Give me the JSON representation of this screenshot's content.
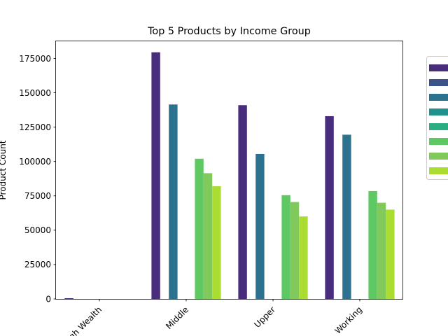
{
  "chart_data": {
    "type": "bar",
    "title": "Top 5 Products by Income Group",
    "xlabel": "",
    "ylabel": "Product Count",
    "categories": [
      "High Wealth",
      "Middle",
      "Upper",
      "Working"
    ],
    "ylim": [
      0,
      188000
    ],
    "yticks": [
      0,
      25000,
      50000,
      75000,
      100000,
      125000,
      150000,
      175000
    ],
    "ytick_labels": [
      "0",
      "25000",
      "50000",
      "75000",
      "100000",
      "125000",
      "150000",
      "175000"
    ],
    "grid": false,
    "legend_position": "right",
    "series": [
      {
        "color": "#472d7b",
        "values": [
          500,
          179500,
          141000,
          133000
        ]
      },
      {
        "color": "#3b528b",
        "values": [
          0,
          0,
          0,
          0
        ]
      },
      {
        "color": "#2c728e",
        "values": [
          0,
          141500,
          105500,
          119500
        ]
      },
      {
        "color": "#21918c",
        "values": [
          0,
          0,
          0,
          0
        ]
      },
      {
        "color": "#28ae80",
        "values": [
          0,
          0,
          0,
          0
        ]
      },
      {
        "color": "#5ec962",
        "values": [
          0,
          102000,
          75500,
          78500
        ]
      },
      {
        "color": "#80c95a",
        "values": [
          0,
          91500,
          70500,
          70000
        ]
      },
      {
        "color": "#aadc32",
        "values": [
          0,
          82000,
          60000,
          65000
        ]
      }
    ]
  }
}
